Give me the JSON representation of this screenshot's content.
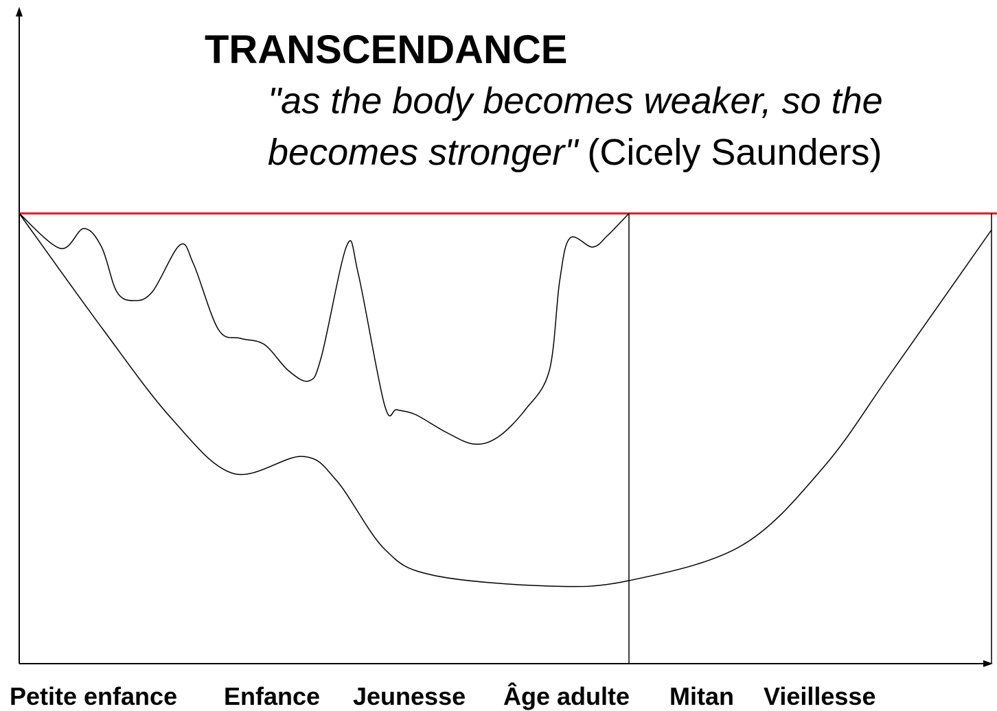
{
  "title": "TRANSCENDANCE",
  "quote": {
    "line1": "\"as the body becomes weaker, so the",
    "line2_italic": "becomes stronger\"",
    "line2_author": "(Cicely Saunders)"
  },
  "stages": [
    "Petite enfance",
    "Enfance",
    "Jeunesse",
    "Âge adulte",
    "Mitan",
    "Vieillesse"
  ]
}
